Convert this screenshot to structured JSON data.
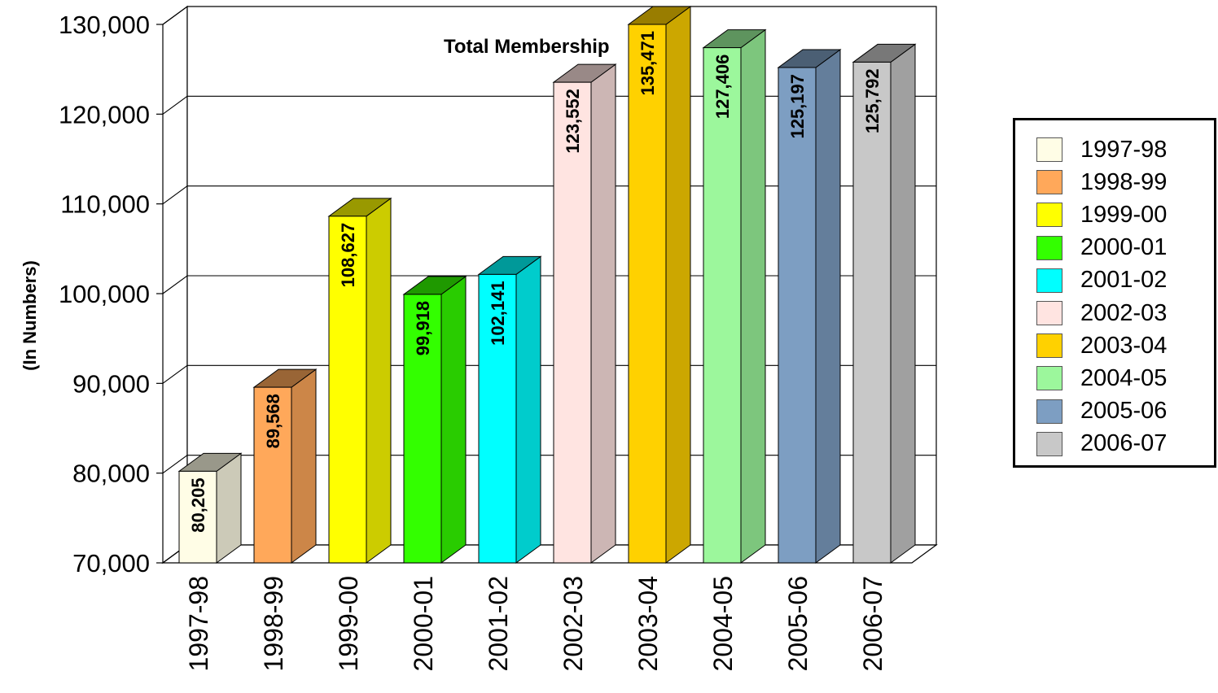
{
  "chart_data": {
    "type": "bar",
    "title": "Total Membership",
    "ylabel": "(In Numbers)",
    "xlabel": "",
    "ylim": [
      70000,
      130000
    ],
    "yticks": [
      "70,000",
      "80,000",
      "90,000",
      "100,000",
      "110,000",
      "120,000",
      "130,000"
    ],
    "ytick_values": [
      70000,
      80000,
      90000,
      100000,
      110000,
      120000,
      130000
    ],
    "categories": [
      "1997-98",
      "1998-99",
      "1999-00",
      "2000-01",
      "2001-02",
      "2002-03",
      "2003-04",
      "2004-05",
      "2005-06",
      "2006-07"
    ],
    "values": [
      80205,
      89568,
      108627,
      99918,
      102141,
      123552,
      135471,
      127406,
      125197,
      125792
    ],
    "data_labels": [
      "80,205",
      "89,568",
      "108,627",
      "99,918",
      "102,141",
      "123,552",
      "135,471",
      "127,406",
      "125,197",
      "125,792"
    ],
    "colors": [
      "#fffde6",
      "#ffa85a",
      "#ffff00",
      "#33ff00",
      "#00ffff",
      "#ffe4e1",
      "#ffd100",
      "#9cf79c",
      "#7d9ec2",
      "#c8c8c8"
    ],
    "grid": true,
    "legend_position": "right",
    "style": "3d"
  }
}
